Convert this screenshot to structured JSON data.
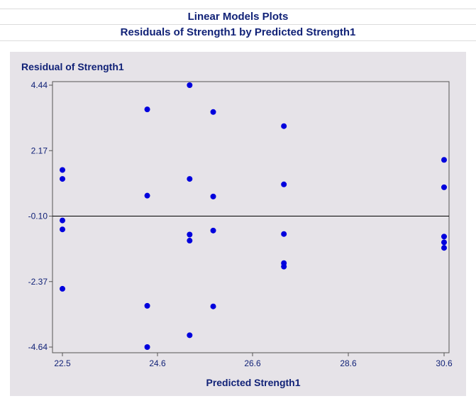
{
  "header": {
    "title": "Linear Models Plots",
    "subtitle": "Residuals of Strength1 by Predicted Strength1"
  },
  "colors": {
    "point": "#0000dd",
    "text": "#112277",
    "panel_bg": "#e6e3e8",
    "plot_bg": "#e6e3e8",
    "frame": "#555555"
  },
  "chart_data": {
    "type": "scatter",
    "title": "Residuals of Strength1 by Predicted Strength1",
    "xlabel": "Predicted Strength1",
    "ylabel": "Residual of Strength1",
    "xlim": [
      22.5,
      30.6
    ],
    "ylim": [
      -4.64,
      4.44
    ],
    "xticks": [
      "22.5",
      "24.6",
      "26.6",
      "28.6",
      "30.6"
    ],
    "yticks": [
      "4.44",
      "2.17",
      "-0.10",
      "-2.37",
      "-4.64"
    ],
    "reference_line_y": -0.1,
    "grid": false,
    "points": [
      {
        "x": 22.5,
        "y": 1.5
      },
      {
        "x": 22.5,
        "y": 1.19
      },
      {
        "x": 22.5,
        "y": -0.25
      },
      {
        "x": 22.5,
        "y": -0.56
      },
      {
        "x": 22.5,
        "y": -2.62
      },
      {
        "x": 24.3,
        "y": 3.6
      },
      {
        "x": 24.3,
        "y": 0.61
      },
      {
        "x": 24.3,
        "y": -3.21
      },
      {
        "x": 24.3,
        "y": -4.64
      },
      {
        "x": 25.2,
        "y": 4.44
      },
      {
        "x": 25.2,
        "y": 1.19
      },
      {
        "x": 25.2,
        "y": -0.74
      },
      {
        "x": 25.2,
        "y": -0.95
      },
      {
        "x": 25.2,
        "y": -4.23
      },
      {
        "x": 25.7,
        "y": 3.51
      },
      {
        "x": 25.7,
        "y": 0.58
      },
      {
        "x": 25.7,
        "y": -0.6
      },
      {
        "x": 25.7,
        "y": -3.23
      },
      {
        "x": 27.2,
        "y": 3.02
      },
      {
        "x": 27.2,
        "y": 1.0
      },
      {
        "x": 27.2,
        "y": -0.72
      },
      {
        "x": 27.2,
        "y": -1.73
      },
      {
        "x": 27.2,
        "y": -1.85
      },
      {
        "x": 30.6,
        "y": 1.85
      },
      {
        "x": 30.6,
        "y": 0.9
      },
      {
        "x": 30.6,
        "y": -0.81
      },
      {
        "x": 30.6,
        "y": -1.01
      },
      {
        "x": 30.6,
        "y": -1.2
      }
    ]
  }
}
